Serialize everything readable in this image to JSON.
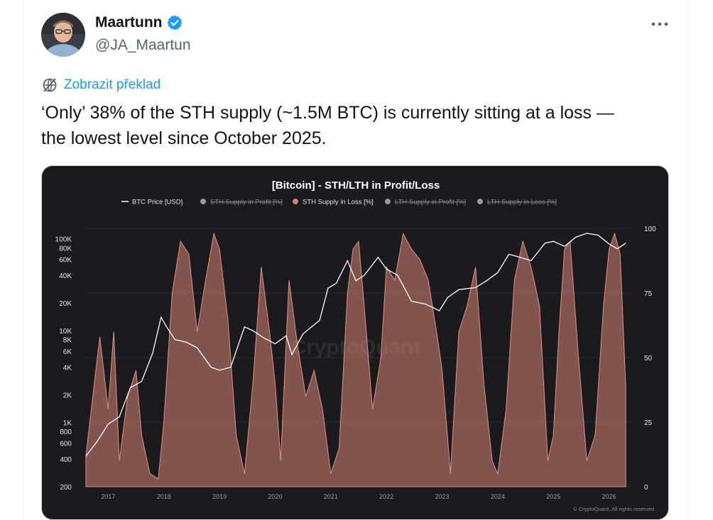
{
  "author": {
    "display_name": "Maartunn",
    "handle": "@JA_Maartun"
  },
  "icons": {
    "verified": "verified-badge-icon",
    "more": "more-dots-icon",
    "translate": "translate-globe-icon"
  },
  "translate_label": "Zobrazit překlad",
  "tweet_text": "‘Only’ 38% of the STH supply (~1.5M BTC) is currently sitting at a loss —\nthe lowest level since October 2025.",
  "colors": {
    "accent": "#1d9bf0",
    "chart_bg": "#1b1b1f",
    "loss_fill": "#d58474",
    "price_line": "#ffffff"
  },
  "chart_data": {
    "type": "area",
    "title": "[Bitcoin] - STH/LTH in Profit/Loss",
    "legend": [
      {
        "name": "BTC Price [USD]",
        "active": true,
        "color": "#ffffff"
      },
      {
        "name": "STH Supply in Profit [%]",
        "active": false,
        "color": "#9a9a9a"
      },
      {
        "name": "STH Supply in Loss [%]",
        "active": true,
        "color": "#d58474"
      },
      {
        "name": "LTH Supply in Profit [%]",
        "active": false,
        "color": "#9a9a9a"
      },
      {
        "name": "LTH Supply in Loss [%]",
        "active": false,
        "color": "#9a9a9a"
      }
    ],
    "legend_position": "top",
    "x_ticks": [
      "2017",
      "2018",
      "2019",
      "2020",
      "2021",
      "2022",
      "2023",
      "2024",
      "2025",
      "2026"
    ],
    "y_left_ticks": [
      "100K",
      "80K",
      "60K",
      "40K",
      "20K",
      "10K",
      "8K",
      "6K",
      "4K",
      "2K",
      "1K",
      "800",
      "600",
      "400",
      "200"
    ],
    "y_left_values": [
      100000,
      80000,
      60000,
      40000,
      20000,
      10000,
      8000,
      6000,
      4000,
      2000,
      1000,
      800,
      600,
      400,
      200
    ],
    "y_left_scale": "log",
    "y_left_range": [
      200,
      130000
    ],
    "y_right_ticks": [
      "100",
      "75",
      "50",
      "25",
      "0"
    ],
    "y_right_values": [
      100,
      75,
      50,
      25,
      0
    ],
    "y_right_range": [
      0,
      100
    ],
    "x_range": [
      2016.6,
      2026.4
    ],
    "watermark": "CryptoQuant",
    "footer": "© CryptoQuant. All rights reserved",
    "series": [
      {
        "name": "BTC Price [USD]",
        "axis": "left",
        "x": [
          2016.6,
          2016.8,
          2017.0,
          2017.2,
          2017.4,
          2017.6,
          2017.8,
          2017.95,
          2018.05,
          2018.2,
          2018.4,
          2018.6,
          2018.85,
          2019.0,
          2019.2,
          2019.45,
          2019.6,
          2019.8,
          2020.0,
          2020.2,
          2020.3,
          2020.5,
          2020.8,
          2020.95,
          2021.1,
          2021.3,
          2021.45,
          2021.6,
          2021.85,
          2022.0,
          2022.2,
          2022.45,
          2022.7,
          2022.95,
          2023.1,
          2023.3,
          2023.6,
          2023.8,
          2024.0,
          2024.2,
          2024.4,
          2024.6,
          2024.85,
          2025.0,
          2025.2,
          2025.4,
          2025.6,
          2025.8,
          2026.0,
          2026.15,
          2026.3
        ],
        "y": [
          430,
          620,
          960,
          1150,
          2400,
          2800,
          5700,
          14000,
          11000,
          8000,
          7500,
          6500,
          4000,
          3700,
          4000,
          11000,
          10000,
          8300,
          7200,
          8800,
          5500,
          9200,
          13000,
          29000,
          33000,
          58000,
          35000,
          40000,
          63000,
          47000,
          40000,
          21000,
          19500,
          16500,
          23000,
          28000,
          29500,
          35000,
          43000,
          68000,
          63000,
          58000,
          90000,
          94000,
          83000,
          104000,
          115000,
          110000,
          88000,
          78000,
          90000
        ]
      },
      {
        "name": "STH Supply in Loss [%]",
        "axis": "right",
        "x": [
          2016.6,
          2016.75,
          2016.85,
          2017.0,
          2017.1,
          2017.2,
          2017.35,
          2017.5,
          2017.6,
          2017.75,
          2017.9,
          2018.0,
          2018.15,
          2018.3,
          2018.45,
          2018.6,
          2018.75,
          2018.9,
          2019.0,
          2019.15,
          2019.3,
          2019.45,
          2019.6,
          2019.75,
          2019.9,
          2020.0,
          2020.1,
          2020.25,
          2020.4,
          2020.55,
          2020.7,
          2020.85,
          2021.0,
          2021.15,
          2021.3,
          2021.4,
          2021.5,
          2021.6,
          2021.75,
          2021.9,
          2022.0,
          2022.15,
          2022.3,
          2022.45,
          2022.6,
          2022.75,
          2022.9,
          2023.0,
          2023.15,
          2023.3,
          2023.45,
          2023.6,
          2023.75,
          2023.9,
          2024.0,
          2024.15,
          2024.3,
          2024.45,
          2024.6,
          2024.75,
          2024.9,
          2025.0,
          2025.1,
          2025.2,
          2025.3,
          2025.45,
          2025.6,
          2025.75,
          2025.9,
          2026.0,
          2026.1,
          2026.2,
          2026.3
        ],
        "y": [
          12,
          40,
          58,
          30,
          60,
          10,
          35,
          45,
          20,
          5,
          3,
          25,
          75,
          95,
          90,
          60,
          80,
          98,
          92,
          65,
          20,
          5,
          40,
          85,
          60,
          40,
          10,
          80,
          55,
          35,
          45,
          30,
          5,
          15,
          75,
          92,
          95,
          70,
          30,
          50,
          85,
          80,
          98,
          92,
          88,
          80,
          60,
          45,
          5,
          60,
          70,
          85,
          40,
          10,
          5,
          30,
          80,
          95,
          85,
          70,
          10,
          20,
          60,
          92,
          95,
          50,
          10,
          20,
          70,
          92,
          98,
          90,
          38
        ]
      }
    ]
  }
}
